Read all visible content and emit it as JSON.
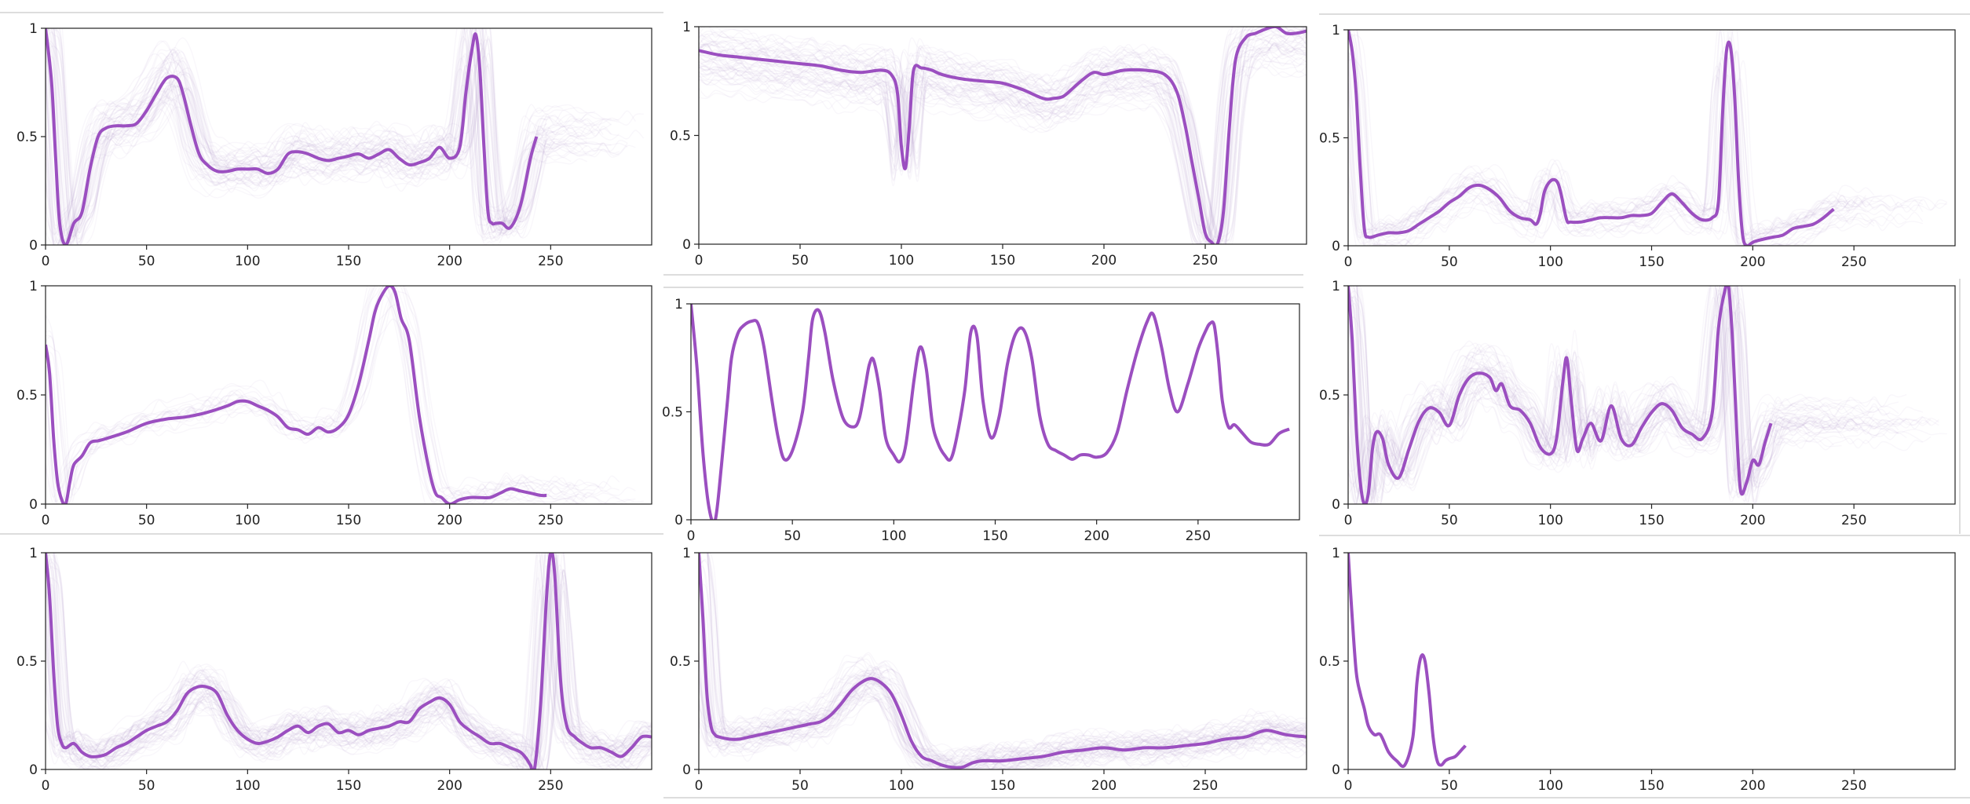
{
  "colors": {
    "main_line": "#9b4fc0",
    "bg_traces": "#b7a2d6",
    "axis": "#222222",
    "divider": "#dddddd"
  },
  "chart_data": [
    {
      "type": "line",
      "xlim": [
        0,
        300
      ],
      "ylim": [
        0,
        1
      ],
      "xticks": [
        "0",
        "50",
        "100",
        "150",
        "200",
        "250"
      ],
      "yticks": [
        "0",
        "0.5",
        "1"
      ],
      "background": "dense",
      "x": [
        0,
        3,
        5,
        7,
        10,
        14,
        18,
        22,
        26,
        30,
        35,
        40,
        45,
        50,
        55,
        60,
        65,
        68,
        72,
        76,
        80,
        85,
        90,
        95,
        100,
        105,
        110,
        115,
        120,
        125,
        130,
        135,
        140,
        145,
        150,
        155,
        160,
        165,
        170,
        175,
        180,
        185,
        190,
        195,
        200,
        205,
        208,
        211,
        213,
        215,
        217,
        219,
        221,
        223,
        226,
        230,
        235,
        240,
        243
      ],
      "y": [
        1.0,
        0.75,
        0.4,
        0.1,
        0.0,
        0.1,
        0.15,
        0.35,
        0.5,
        0.54,
        0.55,
        0.55,
        0.56,
        0.62,
        0.7,
        0.77,
        0.77,
        0.7,
        0.55,
        0.42,
        0.37,
        0.34,
        0.34,
        0.35,
        0.35,
        0.35,
        0.33,
        0.35,
        0.42,
        0.43,
        0.42,
        0.4,
        0.39,
        0.4,
        0.41,
        0.42,
        0.4,
        0.42,
        0.44,
        0.4,
        0.37,
        0.38,
        0.4,
        0.45,
        0.4,
        0.45,
        0.7,
        0.9,
        0.97,
        0.8,
        0.45,
        0.15,
        0.1,
        0.1,
        0.1,
        0.08,
        0.18,
        0.4,
        0.5
      ]
    },
    {
      "type": "line",
      "xlim": [
        0,
        300
      ],
      "ylim": [
        0,
        1
      ],
      "xticks": [
        "0",
        "50",
        "100",
        "150",
        "200",
        "250"
      ],
      "yticks": [
        "0",
        "0.5",
        "1"
      ],
      "background": "dense",
      "x": [
        0,
        10,
        20,
        30,
        40,
        50,
        60,
        70,
        80,
        90,
        95,
        98,
        100,
        102,
        104,
        106,
        110,
        115,
        120,
        130,
        140,
        150,
        160,
        170,
        175,
        180,
        185,
        190,
        195,
        200,
        205,
        210,
        220,
        230,
        236,
        240,
        243,
        247,
        250,
        253,
        256,
        259,
        262,
        265,
        270,
        275,
        280,
        285,
        290,
        295,
        300
      ],
      "y": [
        0.89,
        0.87,
        0.86,
        0.85,
        0.84,
        0.83,
        0.82,
        0.8,
        0.79,
        0.8,
        0.78,
        0.7,
        0.45,
        0.35,
        0.55,
        0.8,
        0.81,
        0.8,
        0.78,
        0.76,
        0.75,
        0.74,
        0.71,
        0.67,
        0.67,
        0.68,
        0.72,
        0.76,
        0.79,
        0.78,
        0.79,
        0.8,
        0.8,
        0.78,
        0.7,
        0.55,
        0.4,
        0.2,
        0.05,
        0.01,
        0.0,
        0.15,
        0.55,
        0.85,
        0.95,
        0.97,
        0.99,
        1.0,
        0.97,
        0.97,
        0.98
      ]
    },
    {
      "type": "line",
      "xlim": [
        0,
        300
      ],
      "ylim": [
        0,
        1
      ],
      "xticks": [
        "0",
        "50",
        "100",
        "150",
        "200",
        "250"
      ],
      "yticks": [
        "0",
        "0.5",
        "1"
      ],
      "background": "light",
      "x": [
        0,
        2,
        4,
        6,
        8,
        10,
        15,
        20,
        25,
        30,
        35,
        40,
        45,
        50,
        55,
        60,
        65,
        70,
        75,
        80,
        85,
        90,
        93,
        95,
        97,
        100,
        103,
        105,
        108,
        110,
        115,
        120,
        125,
        130,
        135,
        140,
        145,
        150,
        155,
        160,
        165,
        170,
        175,
        180,
        183,
        185,
        187,
        189,
        191,
        193,
        195,
        197,
        199,
        201,
        205,
        210,
        215,
        220,
        225,
        230,
        235,
        240
      ],
      "y": [
        1.0,
        0.9,
        0.7,
        0.35,
        0.08,
        0.04,
        0.05,
        0.06,
        0.06,
        0.07,
        0.1,
        0.13,
        0.16,
        0.2,
        0.23,
        0.27,
        0.28,
        0.26,
        0.22,
        0.16,
        0.13,
        0.12,
        0.1,
        0.15,
        0.25,
        0.3,
        0.3,
        0.25,
        0.12,
        0.11,
        0.11,
        0.12,
        0.13,
        0.13,
        0.13,
        0.14,
        0.14,
        0.15,
        0.2,
        0.24,
        0.2,
        0.15,
        0.12,
        0.13,
        0.2,
        0.6,
        0.9,
        0.92,
        0.7,
        0.3,
        0.05,
        0.0,
        0.01,
        0.02,
        0.03,
        0.04,
        0.05,
        0.08,
        0.09,
        0.1,
        0.13,
        0.17
      ]
    },
    {
      "type": "line",
      "xlim": [
        0,
        300
      ],
      "ylim": [
        0,
        1
      ],
      "xticks": [
        "0",
        "50",
        "100",
        "150",
        "200",
        "250"
      ],
      "yticks": [
        "0",
        "0.5",
        "1"
      ],
      "background": "faint",
      "x": [
        0,
        2,
        4,
        6,
        8,
        10,
        12,
        14,
        18,
        22,
        26,
        30,
        40,
        50,
        60,
        70,
        80,
        90,
        95,
        100,
        105,
        110,
        115,
        120,
        125,
        130,
        135,
        140,
        145,
        150,
        155,
        160,
        163,
        166,
        170,
        173,
        176,
        180,
        185,
        190,
        193,
        196,
        200,
        205,
        210,
        215,
        220,
        225,
        230,
        235,
        240,
        245,
        248
      ],
      "y": [
        0.73,
        0.6,
        0.3,
        0.1,
        0.02,
        0.0,
        0.1,
        0.18,
        0.22,
        0.28,
        0.29,
        0.3,
        0.33,
        0.37,
        0.39,
        0.4,
        0.42,
        0.45,
        0.47,
        0.47,
        0.45,
        0.43,
        0.4,
        0.35,
        0.34,
        0.32,
        0.35,
        0.33,
        0.35,
        0.41,
        0.55,
        0.75,
        0.88,
        0.95,
        1.0,
        0.97,
        0.85,
        0.75,
        0.4,
        0.15,
        0.05,
        0.03,
        0.0,
        0.02,
        0.03,
        0.03,
        0.03,
        0.05,
        0.07,
        0.06,
        0.05,
        0.04,
        0.04
      ]
    },
    {
      "type": "line",
      "xlim": [
        0,
        300
      ],
      "ylim": [
        0,
        1
      ],
      "xticks": [
        "0",
        "50",
        "100",
        "150",
        "200",
        "250"
      ],
      "yticks": [
        "0",
        "0.5",
        "1"
      ],
      "background": "none",
      "x": [
        0,
        3,
        6,
        9,
        12,
        15,
        18,
        20,
        23,
        26,
        30,
        33,
        36,
        40,
        43,
        46,
        50,
        55,
        58,
        60,
        63,
        66,
        70,
        75,
        80,
        83,
        86,
        88,
        90,
        93,
        96,
        100,
        103,
        106,
        110,
        113,
        116,
        119,
        122,
        125,
        128,
        131,
        135,
        138,
        141,
        144,
        148,
        152,
        156,
        160,
        164,
        168,
        172,
        176,
        180,
        184,
        188,
        192,
        196,
        200,
        205,
        210,
        215,
        220,
        225,
        228,
        232,
        236,
        240,
        245,
        250,
        254,
        256,
        258,
        260,
        262,
        265,
        268,
        272,
        276,
        280,
        285,
        290,
        295
      ],
      "y": [
        1.0,
        0.7,
        0.3,
        0.05,
        0.0,
        0.25,
        0.55,
        0.75,
        0.86,
        0.9,
        0.92,
        0.91,
        0.8,
        0.55,
        0.38,
        0.28,
        0.32,
        0.5,
        0.75,
        0.93,
        0.97,
        0.87,
        0.65,
        0.47,
        0.43,
        0.47,
        0.62,
        0.72,
        0.74,
        0.6,
        0.38,
        0.3,
        0.27,
        0.35,
        0.65,
        0.8,
        0.7,
        0.45,
        0.35,
        0.3,
        0.28,
        0.38,
        0.6,
        0.87,
        0.85,
        0.55,
        0.38,
        0.48,
        0.72,
        0.86,
        0.88,
        0.75,
        0.48,
        0.35,
        0.32,
        0.3,
        0.28,
        0.3,
        0.3,
        0.29,
        0.31,
        0.4,
        0.6,
        0.78,
        0.92,
        0.95,
        0.8,
        0.6,
        0.5,
        0.63,
        0.79,
        0.88,
        0.91,
        0.9,
        0.75,
        0.55,
        0.43,
        0.44,
        0.4,
        0.36,
        0.35,
        0.35,
        0.4,
        0.42
      ]
    },
    {
      "type": "line",
      "xlim": [
        0,
        300
      ],
      "ylim": [
        0,
        1
      ],
      "xticks": [
        "0",
        "50",
        "100",
        "150",
        "200",
        "250"
      ],
      "yticks": [
        "0",
        "0.5",
        "1"
      ],
      "background": "dense",
      "x": [
        0,
        2,
        4,
        6,
        8,
        10,
        12,
        14,
        17,
        20,
        25,
        30,
        35,
        40,
        45,
        50,
        55,
        60,
        65,
        70,
        73,
        76,
        80,
        85,
        90,
        95,
        100,
        103,
        106,
        108,
        110,
        113,
        116,
        120,
        125,
        130,
        135,
        140,
        145,
        150,
        155,
        160,
        165,
        170,
        175,
        180,
        183,
        186,
        188,
        190,
        192,
        194,
        197,
        200,
        203,
        206,
        209
      ],
      "y": [
        1.0,
        0.75,
        0.35,
        0.1,
        0.0,
        0.05,
        0.25,
        0.33,
        0.3,
        0.18,
        0.12,
        0.25,
        0.38,
        0.44,
        0.42,
        0.36,
        0.5,
        0.58,
        0.6,
        0.58,
        0.52,
        0.55,
        0.45,
        0.43,
        0.37,
        0.26,
        0.23,
        0.3,
        0.55,
        0.67,
        0.5,
        0.25,
        0.3,
        0.37,
        0.29,
        0.45,
        0.3,
        0.27,
        0.35,
        0.42,
        0.46,
        0.43,
        0.35,
        0.32,
        0.3,
        0.42,
        0.8,
        0.97,
        1.0,
        0.75,
        0.35,
        0.06,
        0.1,
        0.2,
        0.18,
        0.28,
        0.37
      ]
    },
    {
      "type": "line",
      "xlim": [
        0,
        300
      ],
      "ylim": [
        0,
        1
      ],
      "xticks": [
        "0",
        "50",
        "100",
        "150",
        "200",
        "250"
      ],
      "yticks": [
        "0",
        "0.5",
        "1"
      ],
      "background": "dense",
      "x": [
        0,
        2,
        4,
        6,
        8,
        10,
        14,
        18,
        22,
        26,
        30,
        35,
        40,
        45,
        50,
        55,
        60,
        65,
        70,
        75,
        80,
        85,
        90,
        95,
        100,
        105,
        110,
        115,
        120,
        125,
        130,
        135,
        140,
        145,
        150,
        155,
        160,
        165,
        170,
        175,
        180,
        185,
        190,
        195,
        200,
        205,
        210,
        215,
        220,
        225,
        230,
        235,
        238,
        240,
        242,
        245,
        248,
        250,
        252,
        255,
        258,
        262,
        266,
        270,
        275,
        280,
        285,
        290,
        295,
        300
      ],
      "y": [
        1.0,
        0.8,
        0.45,
        0.2,
        0.12,
        0.1,
        0.12,
        0.08,
        0.06,
        0.06,
        0.07,
        0.1,
        0.12,
        0.15,
        0.18,
        0.2,
        0.22,
        0.27,
        0.35,
        0.38,
        0.38,
        0.35,
        0.25,
        0.18,
        0.14,
        0.12,
        0.13,
        0.15,
        0.18,
        0.2,
        0.17,
        0.2,
        0.21,
        0.17,
        0.18,
        0.16,
        0.18,
        0.19,
        0.2,
        0.22,
        0.22,
        0.28,
        0.31,
        0.33,
        0.3,
        0.22,
        0.18,
        0.15,
        0.12,
        0.12,
        0.1,
        0.08,
        0.05,
        0.02,
        0.0,
        0.3,
        0.8,
        1.0,
        0.9,
        0.4,
        0.2,
        0.15,
        0.12,
        0.1,
        0.1,
        0.08,
        0.06,
        0.1,
        0.15,
        0.15
      ]
    },
    {
      "type": "line",
      "xlim": [
        0,
        300
      ],
      "ylim": [
        0,
        1
      ],
      "xticks": [
        "0",
        "50",
        "100",
        "150",
        "200",
        "250"
      ],
      "yticks": [
        "0",
        "0.5",
        "1"
      ],
      "background": "dense",
      "x": [
        0,
        2,
        4,
        6,
        8,
        10,
        15,
        20,
        25,
        30,
        35,
        40,
        45,
        50,
        55,
        60,
        65,
        70,
        75,
        80,
        85,
        90,
        95,
        100,
        105,
        110,
        115,
        120,
        125,
        130,
        135,
        140,
        150,
        160,
        170,
        180,
        190,
        200,
        210,
        220,
        230,
        240,
        250,
        260,
        270,
        280,
        290,
        300
      ],
      "y": [
        1.0,
        0.7,
        0.35,
        0.2,
        0.16,
        0.15,
        0.14,
        0.14,
        0.15,
        0.16,
        0.17,
        0.18,
        0.19,
        0.2,
        0.21,
        0.22,
        0.25,
        0.3,
        0.36,
        0.4,
        0.42,
        0.4,
        0.35,
        0.25,
        0.13,
        0.06,
        0.04,
        0.02,
        0.01,
        0.01,
        0.03,
        0.04,
        0.04,
        0.05,
        0.06,
        0.08,
        0.09,
        0.1,
        0.09,
        0.1,
        0.1,
        0.11,
        0.12,
        0.14,
        0.15,
        0.18,
        0.16,
        0.15
      ]
    },
    {
      "type": "line",
      "xlim": [
        0,
        300
      ],
      "ylim": [
        0,
        1
      ],
      "xticks": [
        "0",
        "50",
        "100",
        "150",
        "200",
        "250"
      ],
      "yticks": [
        "0",
        "0.5",
        "1"
      ],
      "background": "none",
      "x": [
        0,
        2,
        4,
        6,
        8,
        10,
        13,
        16,
        20,
        24,
        28,
        32,
        34,
        36,
        38,
        40,
        42,
        44,
        46,
        48,
        50,
        53,
        56,
        58
      ],
      "y": [
        1.0,
        0.7,
        0.45,
        0.35,
        0.28,
        0.2,
        0.16,
        0.16,
        0.08,
        0.04,
        0.02,
        0.15,
        0.4,
        0.52,
        0.5,
        0.35,
        0.15,
        0.04,
        0.02,
        0.04,
        0.05,
        0.06,
        0.09,
        0.11
      ]
    }
  ]
}
